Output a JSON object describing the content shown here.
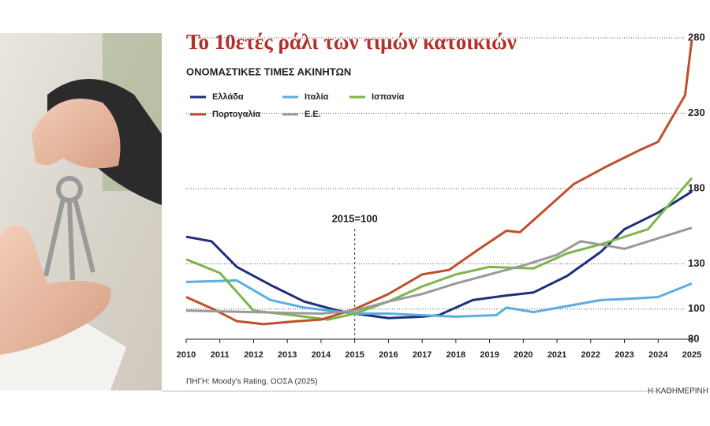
{
  "chart_data": {
    "type": "line",
    "title": "Το 10ετές ράλι των τιμών κατοικιών",
    "subtitle": "ΟΝΟΜΑΣΤΙΚΕΣ ΤΙΜΕΣ ΑΚΙΝΗΤΩΝ",
    "annotation": "2015=100",
    "source": "ΠΗΓΗ: Moody's Rating, ΟΟΣΑ (2025)",
    "credit": "Η ΚΑΘΗΜΕΡΙΝΗ",
    "xlim": [
      2010,
      2025
    ],
    "xticks": [
      2010,
      2011,
      2012,
      2013,
      2014,
      2015,
      2016,
      2017,
      2018,
      2019,
      2020,
      2021,
      2022,
      2023,
      2024,
      2025
    ],
    "ylim": [
      80,
      280
    ],
    "yticks": [
      80,
      100,
      130,
      180,
      230,
      280
    ],
    "annotation_x": 2015,
    "series": [
      {
        "name": "Ελλάδα",
        "color": "#1f2f7a",
        "x": [
          2010,
          2010.75,
          2011.5,
          2012.5,
          2013.5,
          2014.5,
          2015,
          2016,
          2017,
          2017.5,
          2018.5,
          2019.5,
          2020.3,
          2021.3,
          2022.3,
          2023,
          2024,
          2025
        ],
        "values": [
          148,
          145,
          128,
          116,
          105,
          99,
          97,
          94,
          95,
          96,
          106,
          109,
          111,
          122,
          138,
          153,
          164,
          178
        ]
      },
      {
        "name": "Ιταλία",
        "color": "#5aaee0",
        "x": [
          2010,
          2011.5,
          2012.5,
          2013.5,
          2015,
          2016,
          2017,
          2018,
          2019.2,
          2019.5,
          2020.3,
          2021.3,
          2022.3,
          2023.3,
          2024,
          2025
        ],
        "values": [
          118,
          119,
          106,
          101,
          97,
          97,
          96,
          95,
          96,
          101,
          98,
          102,
          106,
          107,
          108,
          117
        ]
      },
      {
        "name": "Ισπανία",
        "color": "#7ab648",
        "x": [
          2010,
          2011,
          2012,
          2013.5,
          2014.2,
          2015,
          2016,
          2017,
          2018,
          2019,
          2020.3,
          2021.3,
          2022.3,
          2023,
          2023.7,
          2024.5,
          2025
        ],
        "values": [
          133,
          124,
          99,
          95,
          93,
          97,
          105,
          115,
          123,
          128,
          127,
          137,
          143,
          148,
          153,
          174,
          187
        ]
      },
      {
        "name": "Πορτογαλία",
        "color": "#c0502a",
        "x": [
          2010,
          2010.8,
          2011.5,
          2012.3,
          2013.3,
          2014,
          2015,
          2016,
          2017,
          2017.8,
          2018.7,
          2019.5,
          2019.9,
          2020.7,
          2021.5,
          2022.5,
          2023.5,
          2024,
          2024.8,
          2025
        ],
        "values": [
          108,
          100,
          92,
          90,
          92,
          93,
          100,
          110,
          123,
          126,
          140,
          152,
          151,
          167,
          183,
          195,
          206,
          211,
          242,
          279
        ]
      },
      {
        "name": "Ε.Ε.",
        "color": "#9a9a9a",
        "x": [
          2010,
          2012,
          2014,
          2015,
          2016,
          2017,
          2018,
          2019,
          2020,
          2021,
          2021.7,
          2022.5,
          2023,
          2024,
          2025
        ],
        "values": [
          99,
          98,
          97,
          99,
          105,
          110,
          117,
          123,
          129,
          136,
          145,
          142,
          140,
          147,
          154
        ]
      }
    ]
  }
}
